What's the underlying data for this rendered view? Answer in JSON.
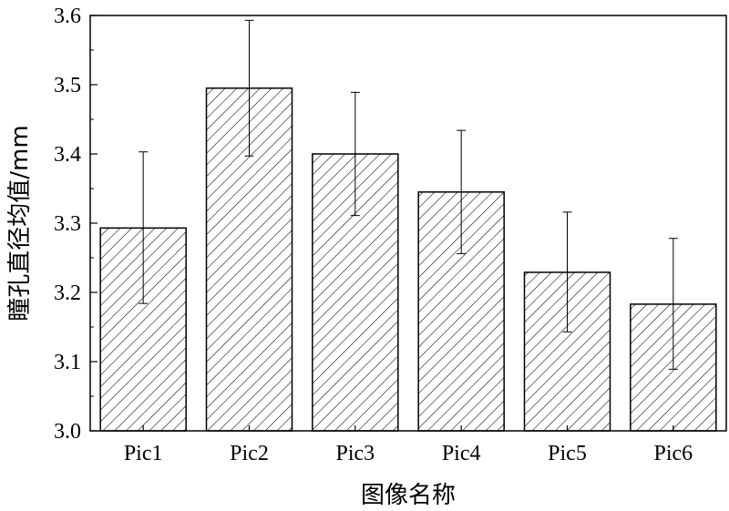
{
  "chart_data": {
    "type": "bar",
    "title": "",
    "xlabel": "图像名称",
    "ylabel": "瞳孔直径均值/mm",
    "categories": [
      "Pic1",
      "Pic2",
      "Pic3",
      "Pic4",
      "Pic5",
      "Pic6"
    ],
    "values": [
      3.293,
      3.495,
      3.4,
      3.345,
      3.229,
      3.183
    ],
    "error_upper": [
      3.403,
      3.593,
      3.489,
      3.434,
      3.316,
      3.278
    ],
    "error_lower": [
      3.184,
      3.397,
      3.311,
      3.256,
      3.143,
      3.089
    ],
    "ylim": [
      3.0,
      3.6
    ],
    "yticks": [
      "3.0",
      "3.1",
      "3.2",
      "3.3",
      "3.4",
      "3.5",
      "3.6"
    ],
    "grid": false,
    "bar_fill": "diagonal hatch",
    "colors": {
      "bar_stroke": "#000000",
      "hatch": "#000000",
      "background": "#ffffff"
    }
  }
}
